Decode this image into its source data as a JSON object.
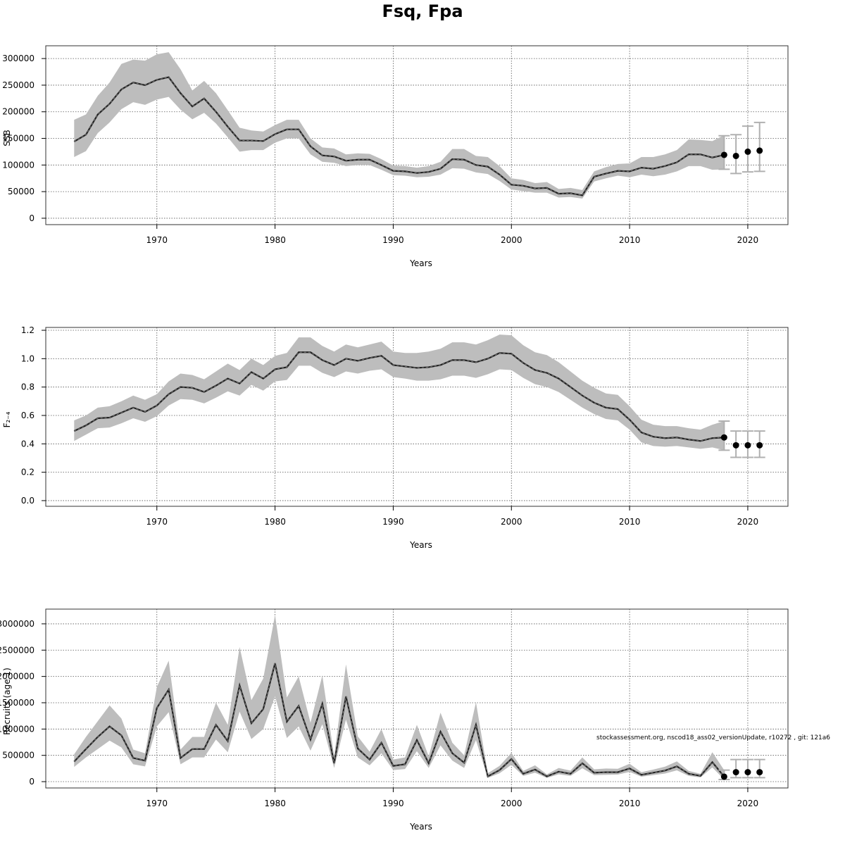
{
  "figure": {
    "title": "Fsq, Fpa",
    "footnote": "stockassessment.org, nscod18_ass02_versionUpdate, r10272 , git: 121a6"
  },
  "chart_data": [
    {
      "type": "line",
      "ylabel": "SSB",
      "xlabel": "Years",
      "xlim": [
        1960.6,
        2023.4
      ],
      "ylim": [
        -12000,
        324000
      ],
      "xticks": [
        1970,
        1980,
        1990,
        2000,
        2010,
        2020
      ],
      "yticks": [
        0,
        50000,
        100000,
        150000,
        200000,
        250000,
        300000
      ],
      "ytick_labels": [
        "0",
        "50000",
        "100000",
        "150000",
        "200000",
        "250000",
        "300000"
      ],
      "grid": true,
      "colors": {
        "line": "#000000",
        "band": "#bdbdbd",
        "errorbar": "#b0b0b0",
        "point": "#000000"
      },
      "x": [
        1963,
        1964,
        1965,
        1966,
        1967,
        1968,
        1969,
        1970,
        1971,
        1972,
        1973,
        1974,
        1975,
        1976,
        1977,
        1978,
        1979,
        1980,
        1981,
        1982,
        1983,
        1984,
        1985,
        1986,
        1987,
        1988,
        1989,
        1990,
        1991,
        1992,
        1993,
        1994,
        1995,
        1996,
        1997,
        1998,
        1999,
        2000,
        2001,
        2002,
        2003,
        2004,
        2005,
        2006,
        2007,
        2008,
        2009,
        2010,
        2011,
        2012,
        2013,
        2014,
        2015,
        2016,
        2017,
        2018
      ],
      "estimate": [
        144000,
        157000,
        195000,
        215000,
        242000,
        255000,
        250000,
        260000,
        265000,
        235000,
        210000,
        225000,
        200000,
        172000,
        146000,
        146000,
        145000,
        158000,
        167000,
        167000,
        135000,
        118000,
        116000,
        108000,
        110000,
        110000,
        100000,
        89000,
        88000,
        85000,
        87000,
        93000,
        111000,
        110000,
        100000,
        97000,
        82000,
        63000,
        61000,
        56000,
        57000,
        46000,
        47000,
        43000,
        78000,
        84000,
        89000,
        88000,
        95000,
        93000,
        98000,
        105000,
        120000,
        120000,
        114000,
        119000
      ],
      "upper": [
        185000,
        195000,
        230000,
        255000,
        290000,
        298000,
        296000,
        308000,
        312000,
        280000,
        240000,
        258000,
        235000,
        203000,
        170000,
        165000,
        163000,
        175000,
        185000,
        185000,
        150000,
        133000,
        131000,
        120000,
        122000,
        121000,
        111000,
        99000,
        98000,
        95000,
        98000,
        106000,
        130000,
        130000,
        117000,
        115000,
        98000,
        75000,
        72000,
        66000,
        68000,
        55000,
        57000,
        53000,
        88000,
        96000,
        102000,
        103000,
        115000,
        115000,
        120000,
        128000,
        148000,
        147000,
        145000,
        156000
      ],
      "lower": [
        115000,
        126000,
        160000,
        180000,
        205000,
        218000,
        213000,
        223000,
        228000,
        204000,
        186000,
        198000,
        178000,
        152000,
        125000,
        128000,
        128000,
        142000,
        150000,
        150000,
        120000,
        106000,
        104000,
        98000,
        100000,
        100000,
        91000,
        81000,
        80000,
        77000,
        78000,
        82000,
        94000,
        93000,
        86000,
        83000,
        70000,
        54000,
        51000,
        48000,
        48000,
        39000,
        40000,
        37000,
        69000,
        75000,
        80000,
        77000,
        82000,
        79000,
        82000,
        88000,
        98000,
        98000,
        91000,
        92000
      ],
      "forecast": {
        "x": [
          2018,
          2019,
          2020,
          2021
        ],
        "estimate": [
          119000,
          117000,
          125000,
          127000
        ],
        "upper": [
          155000,
          157000,
          173000,
          180000
        ],
        "lower": [
          92000,
          84000,
          87000,
          88000
        ]
      }
    },
    {
      "type": "line",
      "ylabel": "F₂₋₄",
      "xlabel": "Years",
      "xlim": [
        1960.6,
        2023.4
      ],
      "ylim": [
        -0.04,
        1.22
      ],
      "xticks": [
        1970,
        1980,
        1990,
        2000,
        2010,
        2020
      ],
      "yticks": [
        0,
        0.2,
        0.4,
        0.6,
        0.8,
        1.0,
        1.2
      ],
      "ytick_labels": [
        "0.0",
        "0.2",
        "0.4",
        "0.6",
        "0.8",
        "1.0",
        "1.2"
      ],
      "grid": true,
      "colors": {
        "line": "#000000",
        "band": "#bdbdbd",
        "errorbar": "#b0b0b0",
        "point": "#000000"
      },
      "x": [
        1963,
        1964,
        1965,
        1966,
        1967,
        1968,
        1969,
        1970,
        1971,
        1972,
        1973,
        1974,
        1975,
        1976,
        1977,
        1978,
        1979,
        1980,
        1981,
        1982,
        1983,
        1984,
        1985,
        1986,
        1987,
        1988,
        1989,
        1990,
        1991,
        1992,
        1993,
        1994,
        1995,
        1996,
        1997,
        1998,
        1999,
        2000,
        2001,
        2002,
        2003,
        2004,
        2005,
        2006,
        2007,
        2008,
        2009,
        2010,
        2011,
        2012,
        2013,
        2014,
        2015,
        2016,
        2017,
        2018
      ],
      "estimate": [
        0.49,
        0.53,
        0.58,
        0.585,
        0.62,
        0.655,
        0.625,
        0.67,
        0.75,
        0.8,
        0.795,
        0.765,
        0.81,
        0.86,
        0.825,
        0.905,
        0.86,
        0.925,
        0.94,
        1.045,
        1.045,
        0.99,
        0.955,
        1.0,
        0.985,
        1.005,
        1.02,
        0.955,
        0.945,
        0.935,
        0.94,
        0.955,
        0.99,
        0.99,
        0.975,
        1.0,
        1.04,
        1.035,
        0.97,
        0.92,
        0.9,
        0.86,
        0.8,
        0.74,
        0.69,
        0.655,
        0.645,
        0.57,
        0.48,
        0.45,
        0.44,
        0.445,
        0.43,
        0.42,
        0.44,
        0.445
      ],
      "upper": [
        0.565,
        0.6,
        0.655,
        0.665,
        0.7,
        0.74,
        0.71,
        0.75,
        0.84,
        0.895,
        0.885,
        0.855,
        0.91,
        0.965,
        0.92,
        1.0,
        0.955,
        1.02,
        1.04,
        1.15,
        1.15,
        1.09,
        1.05,
        1.1,
        1.08,
        1.1,
        1.12,
        1.05,
        1.04,
        1.04,
        1.05,
        1.07,
        1.115,
        1.115,
        1.1,
        1.13,
        1.17,
        1.165,
        1.095,
        1.045,
        1.025,
        0.975,
        0.91,
        0.845,
        0.795,
        0.755,
        0.745,
        0.665,
        0.57,
        0.535,
        0.525,
        0.525,
        0.51,
        0.5,
        0.535,
        0.56
      ],
      "lower": [
        0.42,
        0.465,
        0.51,
        0.515,
        0.545,
        0.58,
        0.555,
        0.595,
        0.67,
        0.715,
        0.71,
        0.685,
        0.725,
        0.77,
        0.74,
        0.815,
        0.775,
        0.84,
        0.85,
        0.95,
        0.95,
        0.9,
        0.87,
        0.91,
        0.895,
        0.915,
        0.925,
        0.87,
        0.86,
        0.845,
        0.845,
        0.855,
        0.88,
        0.88,
        0.865,
        0.89,
        0.925,
        0.92,
        0.865,
        0.82,
        0.8,
        0.765,
        0.71,
        0.655,
        0.61,
        0.575,
        0.565,
        0.5,
        0.41,
        0.385,
        0.38,
        0.385,
        0.375,
        0.365,
        0.375,
        0.355
      ],
      "forecast": {
        "x": [
          2018,
          2019,
          2020,
          2021
        ],
        "estimate": [
          0.445,
          0.39,
          0.39,
          0.39
        ],
        "upper": [
          0.56,
          0.49,
          0.49,
          0.49
        ],
        "lower": [
          0.355,
          0.305,
          0.305,
          0.305
        ]
      }
    },
    {
      "type": "line",
      "ylabel": "Recruits (age 1)",
      "xlabel": "Years",
      "xlim": [
        1960.6,
        2023.4
      ],
      "ylim": [
        -120000,
        3280000
      ],
      "xticks": [
        1970,
        1980,
        1990,
        2000,
        2010,
        2020
      ],
      "yticks": [
        0,
        500000,
        1000000,
        1500000,
        2000000,
        2500000,
        3000000
      ],
      "ytick_labels": [
        "0",
        "500000",
        "1000000",
        "1500000",
        "2000000",
        "2500000",
        "3000000"
      ],
      "grid": true,
      "colors": {
        "line": "#000000",
        "band": "#bdbdbd",
        "errorbar": "#b0b0b0",
        "point": "#000000"
      },
      "x": [
        1963,
        1964,
        1965,
        1966,
        1967,
        1968,
        1969,
        1970,
        1971,
        1972,
        1973,
        1974,
        1975,
        1976,
        1977,
        1978,
        1979,
        1980,
        1981,
        1982,
        1983,
        1984,
        1985,
        1986,
        1987,
        1988,
        1989,
        1990,
        1991,
        1992,
        1993,
        1994,
        1995,
        1996,
        1997,
        1998,
        1999,
        2000,
        2001,
        2002,
        2003,
        2004,
        2005,
        2006,
        2007,
        2008,
        2009,
        2010,
        2011,
        2012,
        2013,
        2014,
        2015,
        2016,
        2017,
        2018
      ],
      "estimate": [
        380000,
        620000,
        850000,
        1050000,
        880000,
        450000,
        400000,
        1400000,
        1750000,
        450000,
        620000,
        620000,
        1080000,
        770000,
        1830000,
        1110000,
        1380000,
        2250000,
        1140000,
        1440000,
        800000,
        1480000,
        350000,
        1620000,
        630000,
        420000,
        740000,
        300000,
        330000,
        790000,
        350000,
        950000,
        540000,
        360000,
        1080000,
        100000,
        220000,
        430000,
        150000,
        230000,
        100000,
        190000,
        150000,
        350000,
        170000,
        180000,
        180000,
        250000,
        130000,
        170000,
        210000,
        290000,
        150000,
        110000,
        370000,
        95000
      ],
      "upper": [
        520000,
        850000,
        1150000,
        1450000,
        1200000,
        610000,
        540000,
        1800000,
        2300000,
        610000,
        850000,
        850000,
        1500000,
        1080000,
        2560000,
        1550000,
        1960000,
        3170000,
        1600000,
        2000000,
        1120000,
        2020000,
        480000,
        2230000,
        860000,
        570000,
        1000000,
        420000,
        460000,
        1080000,
        480000,
        1310000,
        740000,
        500000,
        1510000,
        160000,
        300000,
        550000,
        205000,
        310000,
        140000,
        260000,
        210000,
        460000,
        235000,
        250000,
        245000,
        340000,
        180000,
        230000,
        285000,
        385000,
        205000,
        150000,
        560000,
        220000
      ],
      "lower": [
        280000,
        460000,
        620000,
        780000,
        650000,
        330000,
        290000,
        1050000,
        1320000,
        330000,
        460000,
        460000,
        800000,
        560000,
        1330000,
        810000,
        1000000,
        1620000,
        830000,
        1050000,
        590000,
        1090000,
        260000,
        1180000,
        460000,
        310000,
        540000,
        220000,
        240000,
        580000,
        260000,
        690000,
        400000,
        260000,
        790000,
        70000,
        160000,
        320000,
        110000,
        170000,
        70000,
        140000,
        110000,
        255000,
        125000,
        130000,
        135000,
        185000,
        95000,
        125000,
        155000,
        215000,
        110000,
        80000,
        270000,
        40000
      ],
      "forecast": {
        "x": [
          2018,
          2019,
          2020,
          2021
        ],
        "estimate": [
          95000,
          180000,
          180000,
          180000
        ],
        "upper": [
          220000,
          420000,
          420000,
          420000
        ],
        "lower": [
          40000,
          75000,
          75000,
          75000
        ]
      }
    }
  ]
}
